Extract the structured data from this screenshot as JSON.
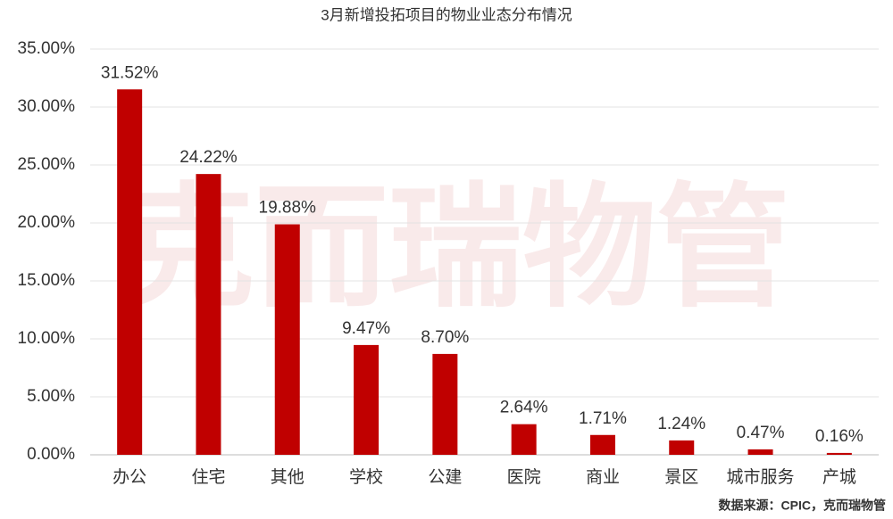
{
  "chart_data": {
    "type": "bar",
    "title": "3月新增投拓项目的物业业态分布情况",
    "watermark": "克而瑞物管",
    "source": "数据来源：CPIC，克而瑞物管",
    "categories": [
      "办公",
      "住宅",
      "其他",
      "学校",
      "公建",
      "医院",
      "商业",
      "景区",
      "城市服务",
      "产城"
    ],
    "values": [
      31.52,
      24.22,
      19.88,
      9.47,
      8.7,
      2.64,
      1.71,
      1.24,
      0.47,
      0.16
    ],
    "value_labels": [
      "31.52%",
      "24.22%",
      "19.88%",
      "9.47%",
      "8.70%",
      "2.64%",
      "1.71%",
      "1.24%",
      "0.47%",
      "0.16%"
    ],
    "color": "#c00000",
    "ylim": [
      0,
      35
    ],
    "yticks": [
      {
        "value": 0,
        "label": "0.00%"
      },
      {
        "value": 5,
        "label": "5.00%"
      },
      {
        "value": 10,
        "label": "10.00%"
      },
      {
        "value": 15,
        "label": "15.00%"
      },
      {
        "value": 20,
        "label": "20.00%"
      },
      {
        "value": 25,
        "label": "25.00%"
      },
      {
        "value": 30,
        "label": "30.00%"
      },
      {
        "value": 35,
        "label": "35.00%"
      }
    ],
    "grid": true
  }
}
